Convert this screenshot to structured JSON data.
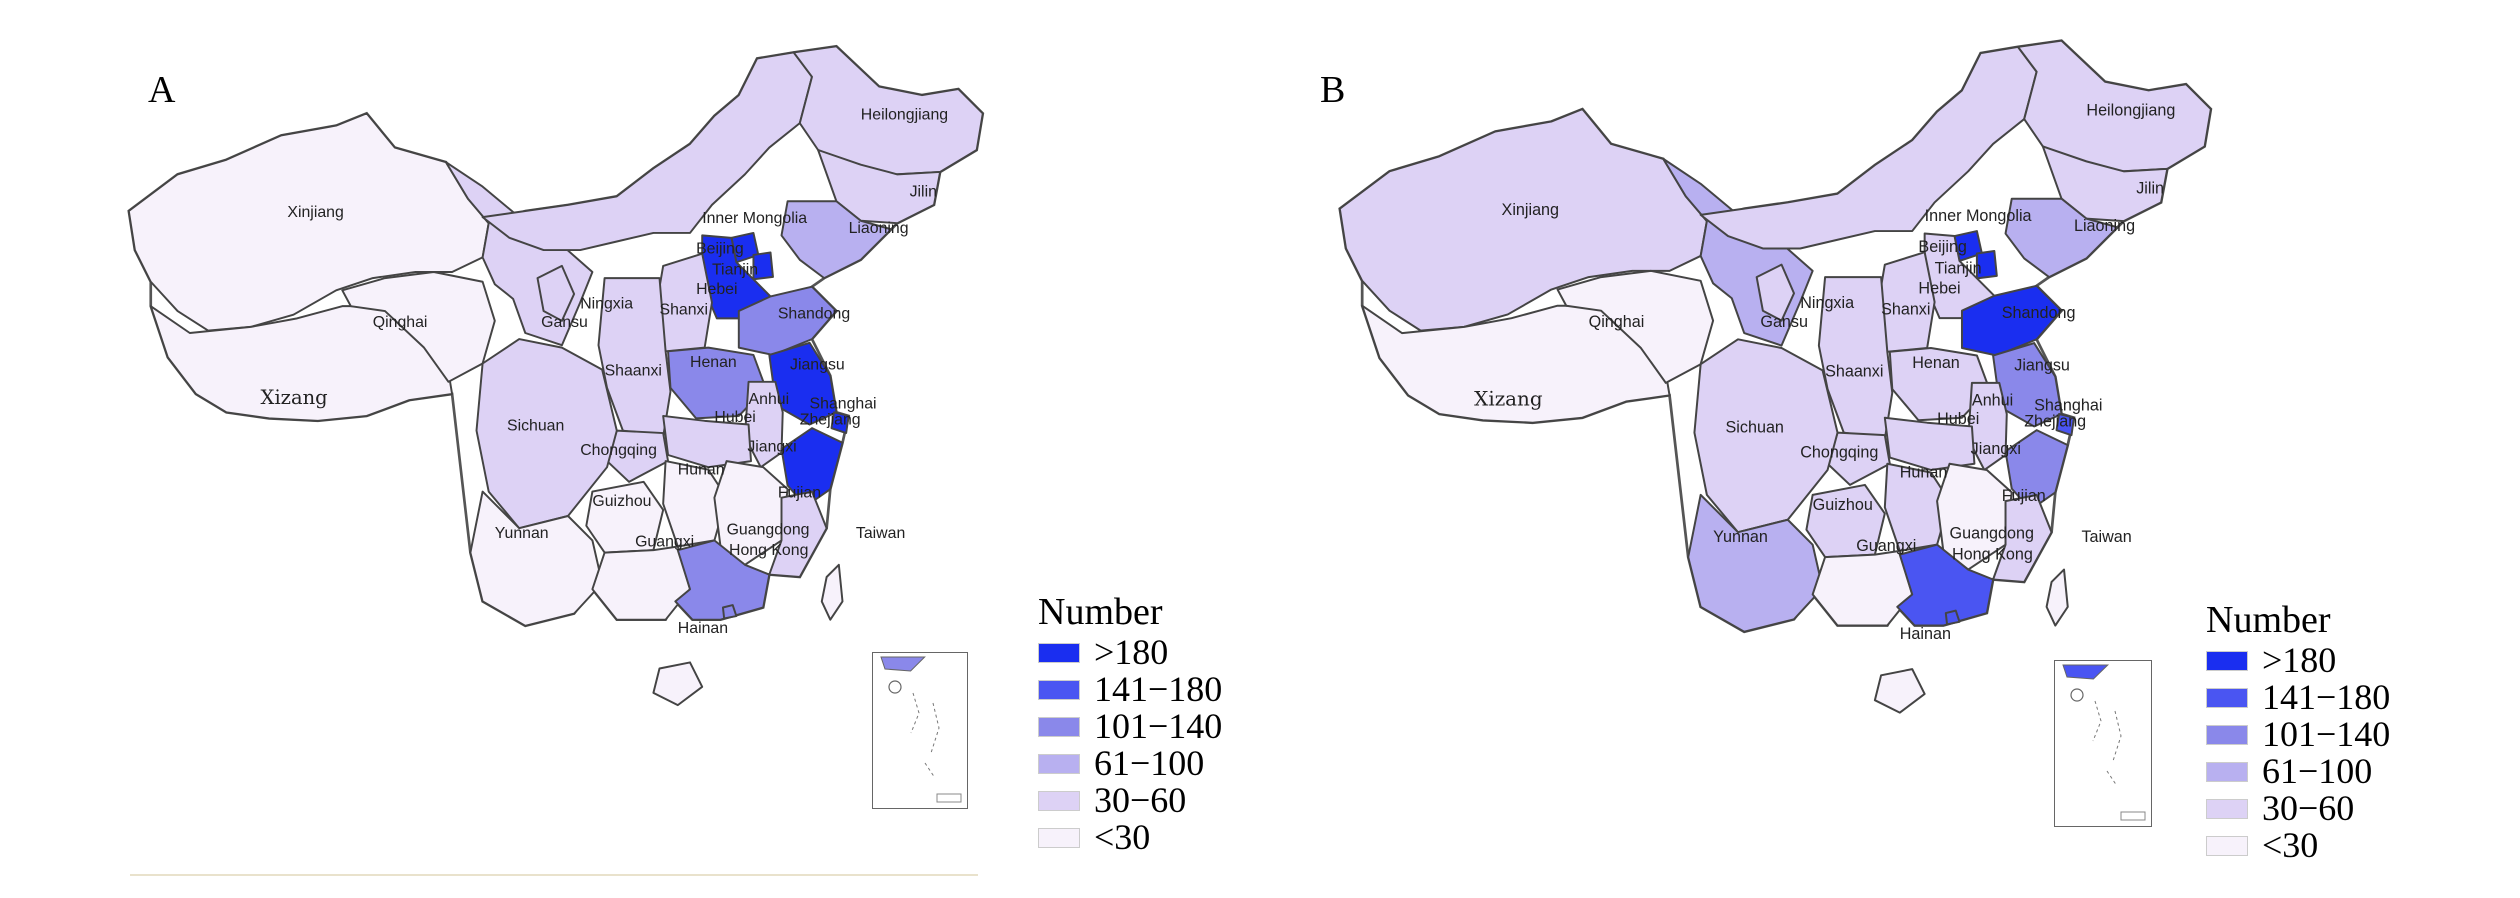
{
  "legend": {
    "title": "Number",
    "classes": [
      {
        "label": ">180",
        "color": "#1a2ef0"
      },
      {
        "label": "141−180",
        "color": "#4a55f2"
      },
      {
        "label": "101−140",
        "color": "#8a88ea"
      },
      {
        "label": "61−100",
        "color": "#b8b0f0"
      },
      {
        "label": "30−60",
        "color": "#ddd2f5"
      },
      {
        "label": "<30",
        "color": "#f7f2fb"
      }
    ]
  },
  "panels": [
    {
      "letter": "A",
      "provinces": {
        "Xinjiang": "<30",
        "Xizang": "<30",
        "Qinghai": "<30",
        "Gansu": "30−60",
        "Inner Mongolia": "30−60",
        "Ningxia": "30−60",
        "Heilongjiang": "30−60",
        "Jilin": "30−60",
        "Liaoning": "61−100",
        "Beijing": ">180",
        "Tianjin": ">180",
        "Hebei": ">180",
        "Shanxi": "30−60",
        "Shandong": "101−140",
        "Henan": "101−140",
        "Shaanxi": "30−60",
        "Jiangsu": ">180",
        "Anhui": "30−60",
        "Shanghai": ">180",
        "Zhejiang": ">180",
        "Sichuan": "30−60",
        "Chongqing": "30−60",
        "Hubei": "30−60",
        "Hunan": "<30",
        "Jiangxi": "<30",
        "Fujian": "30−60",
        "Guizhou": "<30",
        "Yunnan": "<30",
        "Guangxi": "<30",
        "Guangdong": "101−140",
        "Hong Kong": "101−140",
        "Hainan": "<30",
        "Taiwan": "<30"
      }
    },
    {
      "letter": "B",
      "provinces": {
        "Xinjiang": "30−60",
        "Xizang": "<30",
        "Qinghai": "<30",
        "Gansu": "61−100",
        "Inner Mongolia": "30−60",
        "Ningxia": "30−60",
        "Heilongjiang": "30−60",
        "Jilin": "30−60",
        "Liaoning": "61−100",
        "Beijing": ">180",
        "Tianjin": ">180",
        "Hebei": "30−60",
        "Shanxi": "30−60",
        "Shandong": ">180",
        "Henan": "30−60",
        "Shaanxi": "30−60",
        "Jiangsu": "101−140",
        "Anhui": "30−60",
        "Shanghai": "141−180",
        "Zhejiang": "101−140",
        "Sichuan": "30−60",
        "Chongqing": "30−60",
        "Hubei": "30−60",
        "Hunan": "30−60",
        "Jiangxi": "<30",
        "Fujian": "30−60",
        "Guizhou": "30−60",
        "Yunnan": "61−100",
        "Guangxi": "<30",
        "Guangdong": "141−180",
        "Hong Kong": "141−180",
        "Hainan": "<30",
        "Taiwan": "<30"
      }
    }
  ]
}
